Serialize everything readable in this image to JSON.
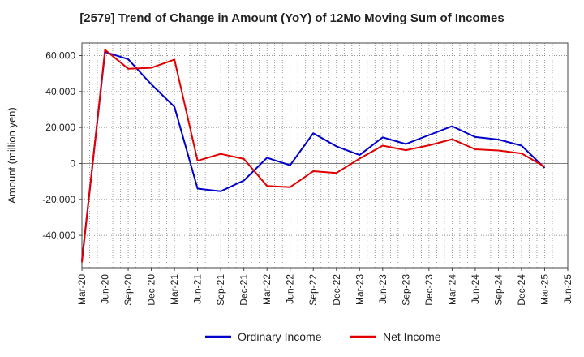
{
  "chart_data": {
    "type": "line",
    "title": "[2579]  Trend of Change in Amount (YoY) of 12Mo Moving Sum of Incomes",
    "ylabel": "Amount (million yen)",
    "xlabel": "",
    "ylim": [
      -58000,
      67000
    ],
    "yticks": [
      -40000,
      -20000,
      0,
      20000,
      40000,
      60000
    ],
    "ytick_labels": [
      "-40,000",
      "-20,000",
      "0",
      "20,000",
      "40,000",
      "60,000"
    ],
    "x_tick_labels": [
      "Mar-20",
      "Jun-20",
      "Sep-20",
      "Dec-20",
      "Mar-21",
      "Jun-21",
      "Sep-21",
      "Dec-21",
      "Mar-22",
      "Jun-22",
      "Sep-22",
      "Dec-22",
      "Mar-23",
      "Jun-23",
      "Sep-23",
      "Dec-23",
      "Mar-24",
      "Jun-24",
      "Sep-24",
      "Dec-24",
      "Mar-25",
      "Jun-25"
    ],
    "x_months": [
      "Mar-20",
      "Apr-20",
      "May-20",
      "Jun-20",
      "Jul-20",
      "Aug-20",
      "Sep-20",
      "Oct-20",
      "Nov-20",
      "Dec-20",
      "Jan-21",
      "Feb-21",
      "Mar-21",
      "Apr-21",
      "May-21",
      "Jun-21",
      "Jul-21",
      "Aug-21",
      "Sep-21",
      "Oct-21",
      "Nov-21",
      "Dec-21",
      "Jan-22",
      "Feb-22",
      "Mar-22",
      "Apr-22",
      "May-22",
      "Jun-22",
      "Jul-22",
      "Aug-22",
      "Sep-22",
      "Oct-22",
      "Nov-22",
      "Dec-22",
      "Jan-23",
      "Feb-23",
      "Mar-23",
      "Apr-23",
      "May-23",
      "Jun-23",
      "Jul-23",
      "Aug-23",
      "Sep-23",
      "Oct-23",
      "Nov-23",
      "Dec-23",
      "Jan-24",
      "Feb-24",
      "Mar-24",
      "Apr-24",
      "May-24",
      "Jun-24",
      "Jul-24",
      "Aug-24",
      "Sep-24",
      "Oct-24",
      "Nov-24",
      "Dec-24",
      "Jan-25",
      "Feb-25",
      "Mar-25",
      "Apr-25",
      "May-25",
      "Jun-25"
    ],
    "grid": true,
    "legend_position": "bottom-center",
    "series": [
      {
        "name": "Ordinary Income",
        "color": "#0000cc",
        "x": [
          "Mar-20",
          "Jun-20",
          "Sep-20",
          "Dec-20",
          "Mar-21",
          "Jun-21",
          "Sep-21",
          "Dec-21",
          "Mar-22",
          "Jun-22",
          "Sep-22",
          "Dec-22",
          "Mar-23",
          "Jun-23",
          "Sep-23",
          "Dec-23",
          "Mar-24",
          "Jun-24",
          "Sep-24",
          "Dec-24",
          "Mar-25"
        ],
        "values": [
          -54000,
          62000,
          58000,
          44000,
          31500,
          -14000,
          -15500,
          -9500,
          3200,
          -1000,
          16800,
          9500,
          4700,
          14500,
          10800,
          15800,
          20700,
          14700,
          13300,
          9900,
          -2500
        ]
      },
      {
        "name": "Net Income",
        "color": "#e00000",
        "x": [
          "Mar-20",
          "Jun-20",
          "Sep-20",
          "Dec-20",
          "Mar-21",
          "Jun-21",
          "Sep-21",
          "Dec-21",
          "Mar-22",
          "Jun-22",
          "Sep-22",
          "Dec-22",
          "Mar-23",
          "Jun-23",
          "Sep-23",
          "Dec-23",
          "Mar-24",
          "Jun-24",
          "Sep-24",
          "Dec-24",
          "Mar-25"
        ],
        "values": [
          -55000,
          63200,
          52700,
          53200,
          57800,
          1500,
          5300,
          2500,
          -12500,
          -13200,
          -4300,
          -5300,
          2700,
          9900,
          7400,
          10100,
          13500,
          7900,
          7200,
          5600,
          -1800
        ]
      }
    ]
  }
}
